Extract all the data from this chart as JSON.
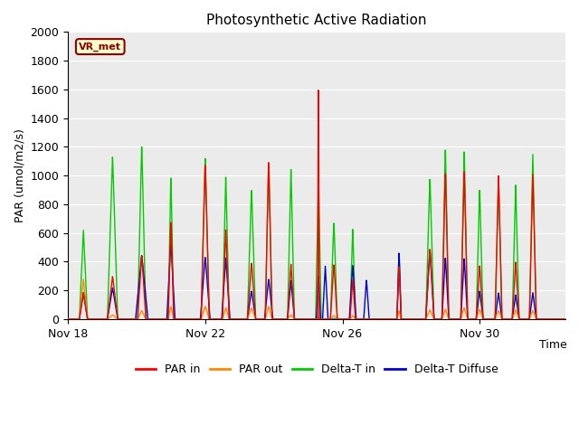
{
  "title": "Photosynthetic Active Radiation",
  "ylabel": "PAR (umol/m2/s)",
  "xlabel": "Time",
  "ylim": [
    0,
    2000
  ],
  "bg_color": "#ebebeb",
  "label_box_text": "VR_met",
  "label_box_bg": "#ffffcc",
  "label_box_edge": "#8b0000",
  "legend_entries": [
    "PAR in",
    "PAR out",
    "Delta-T in",
    "Delta-T Diffuse"
  ],
  "legend_colors": [
    "#ff0000",
    "#ff8800",
    "#00cc00",
    "#0000cc"
  ],
  "xtick_labels": [
    "Nov 18",
    "Nov 22",
    "Nov 26",
    "Nov 30"
  ],
  "xtick_positions": [
    0,
    4,
    8,
    12
  ],
  "ytick_vals": [
    0,
    200,
    400,
    600,
    800,
    1000,
    1200,
    1400,
    1600,
    1800,
    2000
  ]
}
